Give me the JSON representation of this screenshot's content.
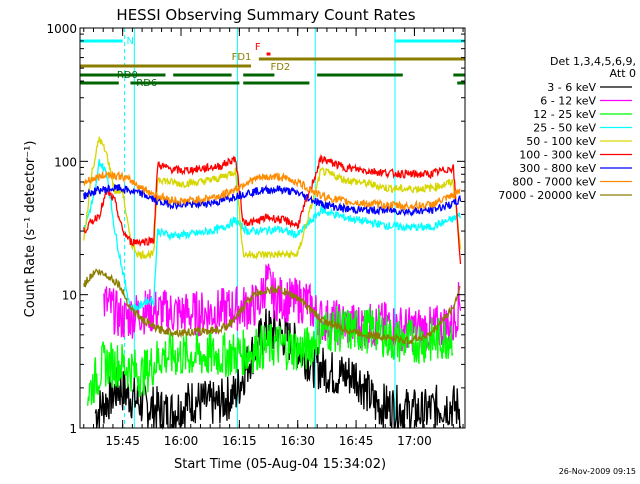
{
  "chart_data": {
    "type": "line",
    "title": "HESSI Observing Summary Count Rates",
    "xlabel": "Start Time (05-Aug-04 15:34:02)",
    "ylabel": "Count Rate (s⁻¹ detector⁻¹)",
    "x_start": "15:34:02",
    "x_end": "17:13:00",
    "xlim": [
      "15:34:02",
      "17:13:00"
    ],
    "ylim": [
      1,
      1000
    ],
    "yscale": "log",
    "x_tick_labels": [
      "15:45",
      "16:00",
      "16:15",
      "16:30",
      "16:45",
      "17:00"
    ],
    "y_tick_labels": [
      "1",
      "10",
      "100",
      "1000"
    ],
    "legend": {
      "placement": "right",
      "header_line1": "Det 1,3,4,5,6,9,",
      "header_line2": "Att 0",
      "entries": [
        {
          "label": "3 - 6 keV",
          "color": "#000000"
        },
        {
          "label": "6 - 12 keV",
          "color": "#ff00ff"
        },
        {
          "label": "12 - 25 keV",
          "color": "#00ff00"
        },
        {
          "label": "25 - 50 keV",
          "color": "#00ffff"
        },
        {
          "label": "50 - 100 keV",
          "color": "#d6d600"
        },
        {
          "label": "100 - 300 keV",
          "color": "#ff0000"
        },
        {
          "label": "300 - 800 keV",
          "color": "#0000ff"
        },
        {
          "label": "800 - 7000 keV",
          "color": "#ff8c00"
        },
        {
          "label": "7000 - 20000 keV",
          "color": "#8b7d00"
        }
      ]
    },
    "flags": [
      {
        "label": "N",
        "color": "#00ffff"
      },
      {
        "label": "F",
        "color": "#ff0000"
      },
      {
        "label": "FD1",
        "color": "#8b7d00"
      },
      {
        "label": "FD2",
        "color": "#8b7d00"
      },
      {
        "label": "RD0",
        "color": "#006400"
      },
      {
        "label": "RD6",
        "color": "#006400"
      }
    ],
    "night_periods": [
      [
        "15:34:02",
        "15:45:30"
      ],
      [
        "16:55:00",
        "17:13:00"
      ]
    ],
    "series": [
      {
        "name": "3 - 6 keV",
        "color": "#000000",
        "points": [
          [
            "15:38",
            1.3
          ],
          [
            "15:44",
            2.0
          ],
          [
            "15:50",
            1.5
          ],
          [
            "15:57",
            1.3
          ],
          [
            "16:03",
            1.6
          ],
          [
            "16:09",
            1.5
          ],
          [
            "16:14",
            1.8
          ],
          [
            "16:18",
            3.5
          ],
          [
            "16:22",
            5.5
          ],
          [
            "16:26",
            5.0
          ],
          [
            "16:30",
            4.0
          ],
          [
            "16:34",
            3.0
          ],
          [
            "16:40",
            2.5
          ],
          [
            "16:45",
            2.5
          ],
          [
            "16:50",
            1.5
          ],
          [
            "16:56",
            1.4
          ],
          [
            "17:02",
            1.3
          ],
          [
            "17:08",
            1.5
          ],
          [
            "17:12",
            1.4
          ]
        ]
      },
      {
        "name": "6 - 12 keV",
        "color": "#ff00ff",
        "points": [
          [
            "15:40",
            9.0
          ],
          [
            "15:45",
            6.5
          ],
          [
            "15:50",
            7.5
          ],
          [
            "15:55",
            7.5
          ],
          [
            "16:00",
            7.2
          ],
          [
            "16:05",
            7.2
          ],
          [
            "16:10",
            7.5
          ],
          [
            "16:15",
            8.0
          ],
          [
            "16:17",
            8.0
          ],
          [
            "16:20",
            8.5
          ],
          [
            "16:22",
            13.0
          ],
          [
            "16:24",
            9.5
          ],
          [
            "16:28",
            9.0
          ],
          [
            "16:32",
            9.0
          ],
          [
            "16:36",
            6.5
          ],
          [
            "16:42",
            6.0
          ],
          [
            "16:48",
            5.8
          ],
          [
            "16:53",
            6.0
          ],
          [
            "16:58",
            5.5
          ],
          [
            "17:04",
            5.5
          ],
          [
            "17:10",
            6.0
          ],
          [
            "17:12",
            10.0
          ]
        ]
      },
      {
        "name": "12 - 25 keV",
        "color": "#00ff00",
        "points": [
          [
            "15:36",
            1.8
          ],
          [
            "15:40",
            3.0
          ],
          [
            "15:45",
            3.0
          ],
          [
            "15:50",
            2.5
          ],
          [
            "15:55",
            3.5
          ],
          [
            "16:00",
            3.5
          ],
          [
            "16:05",
            3.5
          ],
          [
            "16:10",
            3.5
          ],
          [
            "16:14",
            3.6
          ],
          [
            "16:17",
            3.7
          ],
          [
            "16:20",
            4.0
          ],
          [
            "16:25",
            4.2
          ],
          [
            "16:28",
            4.0
          ],
          [
            "16:32",
            3.8
          ],
          [
            "16:36",
            5.5
          ],
          [
            "16:40",
            5.5
          ],
          [
            "16:45",
            5.3
          ],
          [
            "16:50",
            5.5
          ],
          [
            "16:55",
            4.5
          ],
          [
            "17:00",
            4.5
          ],
          [
            "17:05",
            4.5
          ],
          [
            "17:10",
            5.0
          ]
        ]
      },
      {
        "name": "25 - 50 keV",
        "color": "#00ffff",
        "points": [
          [
            "15:35",
            30
          ],
          [
            "15:38",
            60
          ],
          [
            "15:39",
            100
          ],
          [
            "15:41",
            80
          ],
          [
            "15:43",
            30
          ],
          [
            "15:45",
            15
          ],
          [
            "15:47",
            8
          ],
          [
            "15:49",
            8
          ],
          [
            "15:51",
            9
          ],
          [
            "15:53",
            9
          ],
          [
            "15:54",
            30
          ],
          [
            "15:57",
            28
          ],
          [
            "16:00",
            28
          ],
          [
            "16:05",
            29
          ],
          [
            "16:10",
            31
          ],
          [
            "16:14",
            36
          ],
          [
            "16:17",
            30
          ],
          [
            "16:20",
            30
          ],
          [
            "16:25",
            31
          ],
          [
            "16:30",
            28
          ],
          [
            "16:36",
            43
          ],
          [
            "16:42",
            38
          ],
          [
            "16:48",
            35
          ],
          [
            "16:53",
            33
          ],
          [
            "16:58",
            32
          ],
          [
            "17:04",
            32
          ],
          [
            "17:10",
            37
          ],
          [
            "17:12",
            40
          ]
        ]
      },
      {
        "name": "50 - 100 keV",
        "color": "#d6d600",
        "points": [
          [
            "15:35",
            25
          ],
          [
            "15:37",
            80
          ],
          [
            "15:39",
            150
          ],
          [
            "15:41",
            110
          ],
          [
            "15:43",
            60
          ],
          [
            "15:45",
            60
          ],
          [
            "15:47",
            25
          ],
          [
            "15:49",
            20
          ],
          [
            "15:51",
            20
          ],
          [
            "15:53",
            20
          ],
          [
            "15:54",
            75
          ],
          [
            "15:57",
            70
          ],
          [
            "16:00",
            68
          ],
          [
            "16:05",
            70
          ],
          [
            "16:10",
            75
          ],
          [
            "16:14",
            85
          ],
          [
            "16:16",
            20
          ],
          [
            "16:19",
            20
          ],
          [
            "16:22",
            20
          ],
          [
            "16:25",
            20
          ],
          [
            "16:28",
            20
          ],
          [
            "16:30",
            20
          ],
          [
            "16:36",
            85
          ],
          [
            "16:42",
            73
          ],
          [
            "16:48",
            68
          ],
          [
            "16:53",
            63
          ],
          [
            "16:58",
            62
          ],
          [
            "17:04",
            63
          ],
          [
            "17:10",
            70
          ],
          [
            "17:12",
            20
          ]
        ]
      },
      {
        "name": "100 - 300 keV",
        "color": "#ff0000",
        "points": [
          [
            "15:35",
            30
          ],
          [
            "15:37",
            35
          ],
          [
            "15:39",
            40
          ],
          [
            "15:41",
            60
          ],
          [
            "15:43",
            50
          ],
          [
            "15:45",
            30
          ],
          [
            "15:47",
            25
          ],
          [
            "15:49",
            25
          ],
          [
            "15:51",
            25
          ],
          [
            "15:53",
            26
          ],
          [
            "15:54",
            95
          ],
          [
            "15:57",
            88
          ],
          [
            "16:00",
            85
          ],
          [
            "16:05",
            88
          ],
          [
            "16:10",
            92
          ],
          [
            "16:14",
            105
          ],
          [
            "16:16",
            35
          ],
          [
            "16:19",
            35
          ],
          [
            "16:22",
            38
          ],
          [
            "16:25",
            37
          ],
          [
            "16:28",
            35
          ],
          [
            "16:30",
            33
          ],
          [
            "16:36",
            105
          ],
          [
            "16:42",
            90
          ],
          [
            "16:48",
            85
          ],
          [
            "16:53",
            82
          ],
          [
            "16:58",
            80
          ],
          [
            "17:04",
            80
          ],
          [
            "17:10",
            90
          ],
          [
            "17:12",
            15
          ]
        ]
      },
      {
        "name": "300 - 800 keV",
        "color": "#0000ff",
        "points": [
          [
            "15:35",
            55
          ],
          [
            "15:38",
            60
          ],
          [
            "15:41",
            62
          ],
          [
            "15:44",
            63
          ],
          [
            "15:47",
            60
          ],
          [
            "15:50",
            57
          ],
          [
            "15:54",
            50
          ],
          [
            "15:57",
            48
          ],
          [
            "16:00",
            47
          ],
          [
            "16:05",
            48
          ],
          [
            "16:10",
            50
          ],
          [
            "16:14",
            55
          ],
          [
            "16:17",
            58
          ],
          [
            "16:20",
            60
          ],
          [
            "16:25",
            62
          ],
          [
            "16:30",
            58
          ],
          [
            "16:36",
            48
          ],
          [
            "16:42",
            44
          ],
          [
            "16:48",
            43
          ],
          [
            "16:53",
            43
          ],
          [
            "16:58",
            42
          ],
          [
            "17:04",
            43
          ],
          [
            "17:10",
            48
          ],
          [
            "17:12",
            52
          ]
        ]
      },
      {
        "name": "800 - 7000 keV",
        "color": "#ff8c00",
        "points": [
          [
            "15:35",
            70
          ],
          [
            "15:38",
            75
          ],
          [
            "15:41",
            80
          ],
          [
            "15:44",
            78
          ],
          [
            "15:47",
            72
          ],
          [
            "15:50",
            63
          ],
          [
            "15:54",
            55
          ],
          [
            "15:57",
            52
          ],
          [
            "16:00",
            50
          ],
          [
            "16:05",
            52
          ],
          [
            "16:10",
            55
          ],
          [
            "16:14",
            62
          ],
          [
            "16:17",
            70
          ],
          [
            "16:20",
            75
          ],
          [
            "16:25",
            77
          ],
          [
            "16:30",
            70
          ],
          [
            "16:36",
            55
          ],
          [
            "16:42",
            50
          ],
          [
            "16:48",
            48
          ],
          [
            "16:53",
            47
          ],
          [
            "16:58",
            46
          ],
          [
            "17:04",
            47
          ],
          [
            "17:10",
            55
          ],
          [
            "17:12",
            62
          ]
        ]
      },
      {
        "name": "7000 - 20000 keV",
        "color": "#8b7d00",
        "points": [
          [
            "15:35",
            12
          ],
          [
            "15:38",
            15
          ],
          [
            "15:41",
            14
          ],
          [
            "15:44",
            12
          ],
          [
            "15:47",
            8
          ],
          [
            "15:50",
            6.5
          ],
          [
            "15:54",
            5.5
          ],
          [
            "15:57",
            5.3
          ],
          [
            "16:00",
            5.2
          ],
          [
            "16:05",
            5.3
          ],
          [
            "16:10",
            5.5
          ],
          [
            "16:14",
            6.5
          ],
          [
            "16:17",
            9.0
          ],
          [
            "16:20",
            10.5
          ],
          [
            "16:25",
            11.0
          ],
          [
            "16:30",
            9.5
          ],
          [
            "16:36",
            6.5
          ],
          [
            "16:42",
            5.5
          ],
          [
            "16:48",
            5.0
          ],
          [
            "16:53",
            4.8
          ],
          [
            "16:58",
            4.5
          ],
          [
            "17:04",
            5.0
          ],
          [
            "17:10",
            8.0
          ],
          [
            "17:12",
            12.0
          ]
        ]
      }
    ]
  },
  "footer": {
    "timestamp": "26-Nov-2009 09:15"
  }
}
